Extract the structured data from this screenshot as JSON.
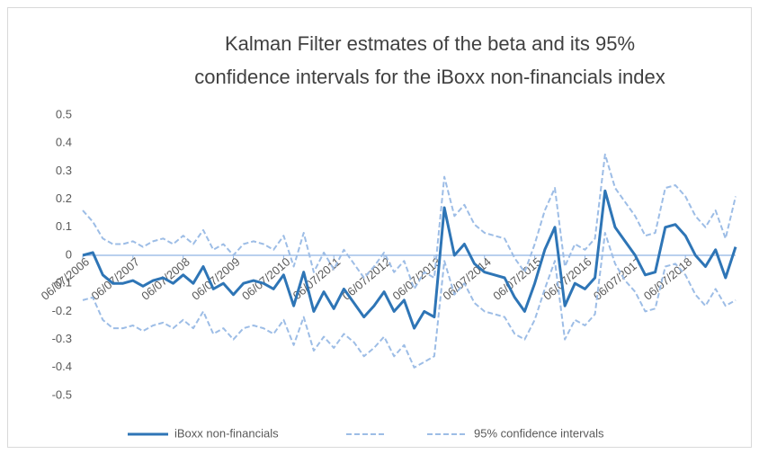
{
  "chart_data": {
    "type": "line",
    "title": [
      "Kalman Filter estmates of the beta and its 95%",
      "confidence intervals for the iBoxx non-financials index"
    ],
    "x": [
      2006.5,
      2006.7,
      2006.9,
      2007.1,
      2007.3,
      2007.5,
      2007.7,
      2007.9,
      2008.1,
      2008.3,
      2008.5,
      2008.7,
      2008.9,
      2009.1,
      2009.3,
      2009.5,
      2009.7,
      2009.9,
      2010.1,
      2010.3,
      2010.5,
      2010.7,
      2010.9,
      2011.1,
      2011.3,
      2011.5,
      2011.7,
      2011.9,
      2012.1,
      2012.3,
      2012.5,
      2012.7,
      2012.9,
      2013.1,
      2013.3,
      2013.5,
      2013.7,
      2013.9,
      2014.1,
      2014.3,
      2014.5,
      2014.7,
      2014.9,
      2015.1,
      2015.3,
      2015.5,
      2015.7,
      2015.9,
      2016.1,
      2016.3,
      2016.5,
      2016.7,
      2016.9,
      2017.1,
      2017.3,
      2017.5,
      2017.7,
      2017.9,
      2018.1,
      2018.3,
      2018.5,
      2018.7,
      2018.9,
      2019.1,
      2019.3,
      2019.5
    ],
    "series": [
      {
        "name": "iBoxx non-financials",
        "color": "#2e75b6",
        "dashed": false,
        "values": [
          0.0,
          0.01,
          -0.07,
          -0.1,
          -0.1,
          -0.09,
          -0.11,
          -0.09,
          -0.08,
          -0.1,
          -0.07,
          -0.1,
          -0.04,
          -0.12,
          -0.1,
          -0.14,
          -0.1,
          -0.09,
          -0.1,
          -0.12,
          -0.07,
          -0.18,
          -0.06,
          -0.2,
          -0.13,
          -0.19,
          -0.12,
          -0.17,
          -0.22,
          -0.18,
          -0.13,
          -0.2,
          -0.16,
          -0.26,
          -0.2,
          -0.22,
          0.17,
          0.0,
          0.04,
          -0.03,
          -0.06,
          -0.07,
          -0.08,
          -0.15,
          -0.2,
          -0.1,
          0.02,
          0.1,
          -0.18,
          -0.1,
          -0.12,
          -0.08,
          0.23,
          0.1,
          0.05,
          0.0,
          -0.07,
          -0.06,
          0.1,
          0.11,
          0.07,
          0.0,
          -0.04,
          0.02,
          -0.08,
          0.03
        ]
      },
      {
        "color": "#9dbde6",
        "dashed": true,
        "values": [
          0.16,
          0.12,
          0.06,
          0.04,
          0.04,
          0.05,
          0.03,
          0.05,
          0.06,
          0.04,
          0.07,
          0.04,
          0.09,
          0.02,
          0.04,
          0.0,
          0.04,
          0.05,
          0.04,
          0.02,
          0.07,
          -0.04,
          0.08,
          -0.06,
          0.01,
          -0.05,
          0.02,
          -0.03,
          -0.08,
          -0.04,
          0.01,
          -0.06,
          -0.02,
          -0.12,
          -0.06,
          -0.08,
          0.28,
          0.14,
          0.18,
          0.11,
          0.08,
          0.07,
          0.06,
          -0.01,
          -0.06,
          0.04,
          0.16,
          0.24,
          -0.04,
          0.04,
          0.02,
          0.06,
          0.36,
          0.24,
          0.19,
          0.14,
          0.07,
          0.08,
          0.24,
          0.25,
          0.21,
          0.14,
          0.1,
          0.16,
          0.06,
          0.21
        ]
      },
      {
        "name": "95% confidence intervals",
        "color": "#9dbde6",
        "dashed": true,
        "values": [
          -0.16,
          -0.15,
          -0.23,
          -0.26,
          -0.26,
          -0.25,
          -0.27,
          -0.25,
          -0.24,
          -0.26,
          -0.23,
          -0.26,
          -0.2,
          -0.28,
          -0.26,
          -0.3,
          -0.26,
          -0.25,
          -0.26,
          -0.28,
          -0.23,
          -0.32,
          -0.22,
          -0.34,
          -0.29,
          -0.33,
          -0.28,
          -0.31,
          -0.36,
          -0.33,
          -0.29,
          -0.36,
          -0.32,
          -0.4,
          -0.38,
          -0.36,
          -0.02,
          -0.14,
          -0.1,
          -0.17,
          -0.2,
          -0.21,
          -0.22,
          -0.28,
          -0.3,
          -0.23,
          -0.12,
          -0.02,
          -0.3,
          -0.23,
          -0.25,
          -0.21,
          0.08,
          -0.03,
          -0.09,
          -0.13,
          -0.2,
          -0.19,
          -0.04,
          -0.03,
          -0.07,
          -0.14,
          -0.18,
          -0.12,
          -0.18,
          -0.16
        ]
      }
    ],
    "xlim": [
      2006.5,
      2019.5
    ],
    "xticks": [
      {
        "value": 2006.5,
        "label": "06/07/2006"
      },
      {
        "value": 2007.5,
        "label": "06/07/2007"
      },
      {
        "value": 2008.5,
        "label": "06/07/2008"
      },
      {
        "value": 2009.5,
        "label": "06/07/2009"
      },
      {
        "value": 2010.5,
        "label": "06/07/2010"
      },
      {
        "value": 2011.5,
        "label": "06/07/2011"
      },
      {
        "value": 2012.5,
        "label": "06/07/2012"
      },
      {
        "value": 2013.5,
        "label": "06/07/2013"
      },
      {
        "value": 2014.5,
        "label": "06/07/2014"
      },
      {
        "value": 2015.5,
        "label": "06/07/2015"
      },
      {
        "value": 2016.5,
        "label": "06/07/2016"
      },
      {
        "value": 2017.5,
        "label": "06/07/2017"
      },
      {
        "value": 2018.5,
        "label": "06/07/2018"
      }
    ],
    "ylim": [
      -0.5,
      0.5
    ],
    "yticks": [
      -0.5,
      -0.4,
      -0.3,
      -0.2,
      -0.1,
      0,
      0.1,
      0.2,
      0.3,
      0.4,
      0.5
    ],
    "grid": false,
    "legend": "bottom"
  }
}
